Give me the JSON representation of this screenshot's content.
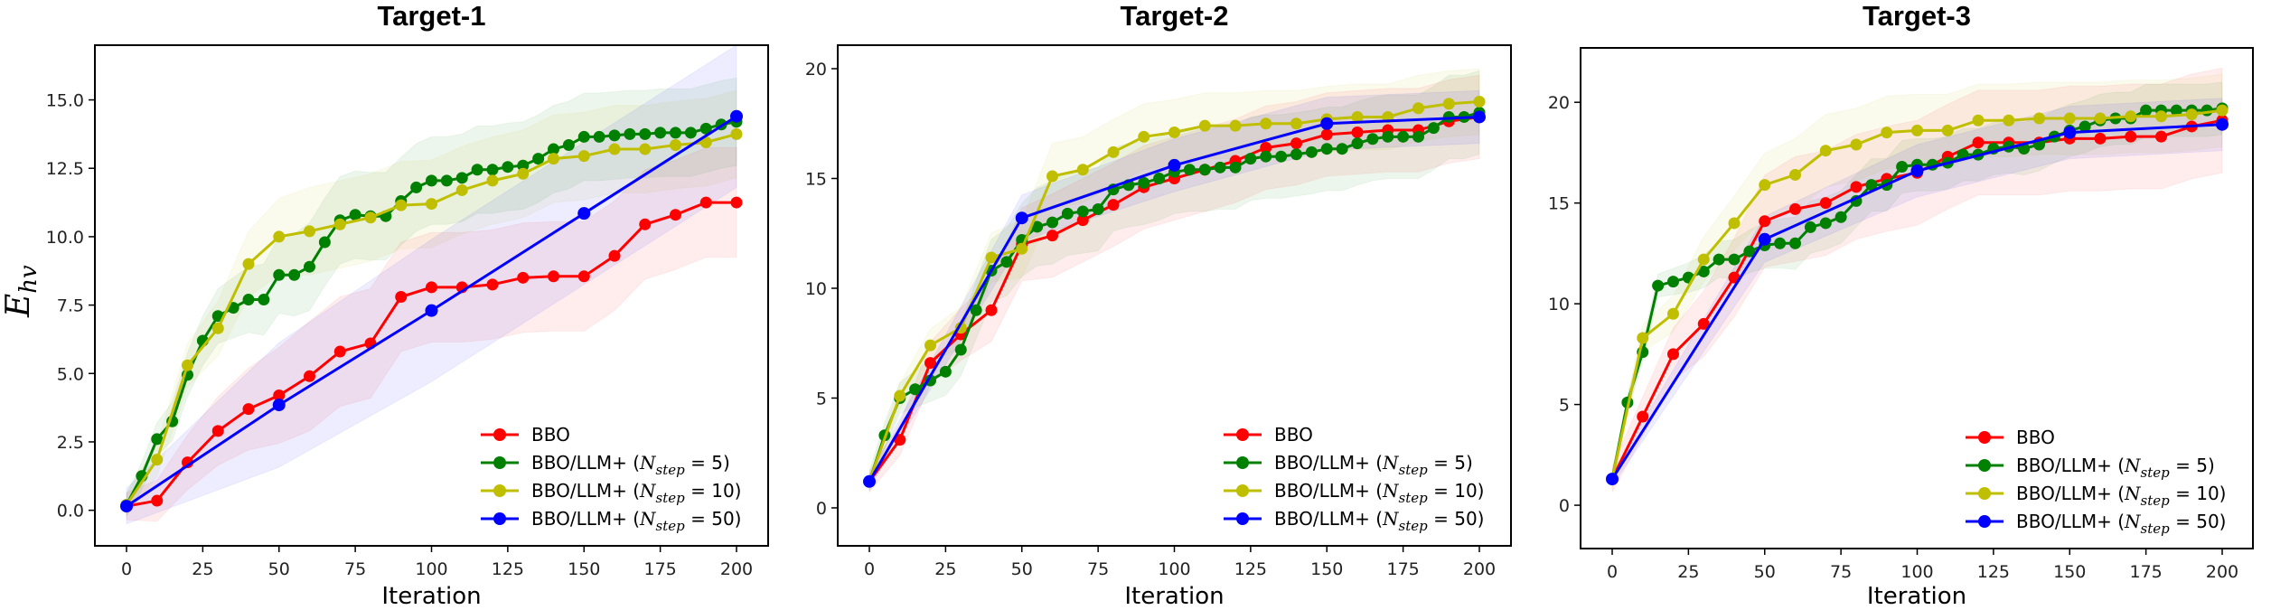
{
  "chart_data": [
    {
      "type": "line",
      "title": "Target-1",
      "xlabel": "Iteration",
      "ylabel": "E_hv",
      "ylabel_main": "E",
      "ylabel_sub": "hv",
      "xlim": [
        -10,
        211
      ],
      "ylim": [
        -1.3,
        17.0
      ],
      "xticks": [
        0,
        25,
        50,
        75,
        100,
        125,
        150,
        175,
        200
      ],
      "yticks": [
        0.0,
        2.5,
        5.0,
        7.5,
        10.0,
        12.5,
        15.0
      ],
      "ytick_labels": [
        "0.0",
        "2.5",
        "5.0",
        "7.5",
        "10.0",
        "12.5",
        "15.0"
      ],
      "legend_position": "lower-right",
      "series": [
        {
          "name": "BBO",
          "color": "#ff0000",
          "std": 2.0,
          "x": [
            0,
            10,
            20,
            30,
            40,
            50,
            60,
            70,
            80,
            90,
            100,
            110,
            120,
            130,
            140,
            150,
            160,
            170,
            180,
            190,
            200
          ],
          "y": [
            0.15,
            0.35,
            1.75,
            2.9,
            3.7,
            4.2,
            4.9,
            5.8,
            6.1,
            7.8,
            8.15,
            8.15,
            8.25,
            8.5,
            8.55,
            8.55,
            9.3,
            10.45,
            10.8,
            11.25,
            11.25
          ]
        },
        {
          "name": "BBO/LLM+ (N_step = 5)",
          "color": "#008000",
          "std": 1.6,
          "x": [
            0,
            5,
            10,
            15,
            20,
            25,
            30,
            35,
            40,
            45,
            50,
            55,
            60,
            65,
            70,
            75,
            80,
            85,
            90,
            95,
            100,
            105,
            110,
            115,
            120,
            125,
            130,
            135,
            140,
            145,
            150,
            155,
            160,
            165,
            170,
            175,
            180,
            185,
            190,
            195,
            200
          ],
          "y": [
            0.2,
            1.25,
            2.6,
            3.25,
            4.95,
            6.2,
            7.1,
            7.4,
            7.7,
            7.7,
            8.6,
            8.6,
            8.9,
            9.8,
            10.6,
            10.8,
            10.75,
            10.75,
            11.3,
            11.8,
            12.05,
            12.05,
            12.15,
            12.45,
            12.45,
            12.55,
            12.6,
            12.85,
            13.2,
            13.35,
            13.65,
            13.65,
            13.7,
            13.75,
            13.75,
            13.8,
            13.8,
            13.8,
            13.95,
            14.1,
            14.2
          ]
        },
        {
          "name": "BBO/LLM+ (N_step = 10)",
          "color": "#bfbf00",
          "std": 1.6,
          "x": [
            0,
            10,
            20,
            30,
            40,
            50,
            60,
            70,
            80,
            90,
            100,
            110,
            120,
            130,
            140,
            150,
            160,
            170,
            180,
            190,
            200
          ],
          "y": [
            0.2,
            1.85,
            5.3,
            6.65,
            9.0,
            10.0,
            10.2,
            10.45,
            10.7,
            11.15,
            11.2,
            11.7,
            12.05,
            12.3,
            12.85,
            12.95,
            13.2,
            13.2,
            13.35,
            13.45,
            13.75
          ]
        },
        {
          "name": "BBO/LLM+ (N_step = 50)",
          "color": "#0000ff",
          "std": 2.6,
          "x": [
            0,
            50,
            100,
            150,
            200
          ],
          "y": [
            0.15,
            3.85,
            7.3,
            10.85,
            14.4
          ]
        }
      ]
    },
    {
      "type": "line",
      "title": "Target-2",
      "xlabel": "Iteration",
      "ylabel": "",
      "xlim": [
        -10,
        211
      ],
      "ylim": [
        -1.73,
        21.07
      ],
      "xticks": [
        0,
        25,
        50,
        75,
        100,
        125,
        150,
        175,
        200
      ],
      "yticks": [
        0,
        5,
        10,
        15,
        20
      ],
      "ytick_labels": [
        "0",
        "5",
        "10",
        "15",
        "20"
      ],
      "legend_position": "lower-right",
      "series": [
        {
          "name": "BBO",
          "color": "#ff0000",
          "std": 1.9,
          "x": [
            0,
            10,
            20,
            30,
            40,
            50,
            60,
            70,
            80,
            90,
            100,
            110,
            120,
            130,
            140,
            150,
            160,
            170,
            180,
            190,
            200
          ],
          "y": [
            1.2,
            3.1,
            6.6,
            7.9,
            9.0,
            12.0,
            12.4,
            13.1,
            13.8,
            14.6,
            15.0,
            15.4,
            15.8,
            16.4,
            16.6,
            17.0,
            17.1,
            17.2,
            17.2,
            17.6,
            17.8
          ]
        },
        {
          "name": "BBO/LLM+ (N_step = 5)",
          "color": "#008000",
          "std": 1.9,
          "x": [
            0,
            5,
            10,
            15,
            20,
            25,
            30,
            35,
            40,
            45,
            50,
            55,
            60,
            65,
            70,
            75,
            80,
            85,
            90,
            95,
            100,
            105,
            110,
            115,
            120,
            125,
            130,
            135,
            140,
            145,
            150,
            155,
            160,
            165,
            170,
            175,
            180,
            185,
            190,
            195,
            200
          ],
          "y": [
            1.2,
            3.3,
            5.0,
            5.4,
            5.8,
            6.2,
            7.2,
            9.0,
            10.8,
            11.2,
            12.2,
            12.8,
            13.0,
            13.4,
            13.5,
            13.6,
            14.5,
            14.7,
            14.8,
            15.0,
            15.3,
            15.4,
            15.4,
            15.5,
            15.5,
            15.9,
            16.0,
            16.0,
            16.1,
            16.2,
            16.35,
            16.35,
            16.6,
            16.8,
            16.9,
            16.9,
            16.9,
            17.3,
            17.8,
            17.8,
            18.0
          ]
        },
        {
          "name": "BBO/LLM+ (N_step = 10)",
          "color": "#bfbf00",
          "std": 1.5,
          "x": [
            0,
            10,
            20,
            30,
            40,
            50,
            60,
            70,
            80,
            90,
            100,
            110,
            120,
            130,
            140,
            150,
            160,
            170,
            180,
            190,
            200
          ],
          "y": [
            1.2,
            5.1,
            7.4,
            8.2,
            11.4,
            11.8,
            15.1,
            15.4,
            16.2,
            16.9,
            17.1,
            17.4,
            17.4,
            17.5,
            17.5,
            17.7,
            17.8,
            17.8,
            18.2,
            18.4,
            18.5
          ]
        },
        {
          "name": "BBO/LLM+ (N_step = 50)",
          "color": "#0000ff",
          "std": 1.2,
          "x": [
            0,
            50,
            100,
            150,
            200
          ],
          "y": [
            1.2,
            13.2,
            15.6,
            17.5,
            17.8
          ]
        }
      ]
    },
    {
      "type": "line",
      "title": "Target-3",
      "xlabel": "Iteration",
      "ylabel": "",
      "xlim": [
        -10,
        211
      ],
      "ylim": [
        -2.15,
        22.7
      ],
      "xticks": [
        0,
        25,
        50,
        75,
        100,
        125,
        150,
        175,
        200
      ],
      "yticks": [
        0,
        5,
        10,
        15,
        20
      ],
      "ytick_labels": [
        "0",
        "5",
        "10",
        "15",
        "20"
      ],
      "legend_position": "lower-right",
      "series": [
        {
          "name": "BBO",
          "color": "#ff0000",
          "std": 2.6,
          "x": [
            0,
            10,
            20,
            30,
            40,
            50,
            60,
            70,
            80,
            90,
            100,
            110,
            120,
            130,
            140,
            150,
            160,
            170,
            180,
            190,
            200
          ],
          "y": [
            1.3,
            4.4,
            7.5,
            9.0,
            11.3,
            14.1,
            14.7,
            15.0,
            15.8,
            16.2,
            16.5,
            17.3,
            18.0,
            18.0,
            18.0,
            18.2,
            18.2,
            18.3,
            18.3,
            18.8,
            19.1
          ]
        },
        {
          "name": "BBO/LLM+ (N_step = 5)",
          "color": "#008000",
          "std": 1.3,
          "x": [
            0,
            5,
            10,
            15,
            20,
            25,
            30,
            35,
            40,
            45,
            50,
            55,
            60,
            65,
            70,
            75,
            80,
            85,
            90,
            95,
            100,
            105,
            110,
            115,
            120,
            125,
            130,
            135,
            140,
            145,
            150,
            155,
            160,
            165,
            170,
            175,
            180,
            185,
            190,
            195,
            200
          ],
          "y": [
            1.3,
            5.1,
            7.6,
            10.9,
            11.1,
            11.3,
            11.6,
            12.2,
            12.2,
            12.6,
            12.9,
            13.0,
            13.0,
            13.8,
            14.0,
            14.3,
            15.1,
            15.9,
            15.9,
            16.8,
            16.9,
            16.9,
            17.0,
            17.4,
            17.4,
            17.7,
            17.8,
            17.7,
            17.9,
            18.3,
            18.6,
            18.8,
            19.1,
            19.2,
            19.2,
            19.6,
            19.6,
            19.6,
            19.6,
            19.6,
            19.7
          ]
        },
        {
          "name": "BBO/LLM+ (N_step = 10)",
          "color": "#bfbf00",
          "std": 1.8,
          "x": [
            0,
            10,
            20,
            30,
            40,
            50,
            60,
            70,
            80,
            90,
            100,
            110,
            120,
            130,
            140,
            150,
            160,
            170,
            180,
            190,
            200
          ],
          "y": [
            1.3,
            8.3,
            9.5,
            12.2,
            14.0,
            15.9,
            16.4,
            17.6,
            17.9,
            18.5,
            18.6,
            18.6,
            19.1,
            19.1,
            19.2,
            19.2,
            19.2,
            19.3,
            19.3,
            19.4,
            19.6
          ]
        },
        {
          "name": "BBO/LLM+ (N_step = 50)",
          "color": "#0000ff",
          "std": 1.3,
          "x": [
            0,
            50,
            100,
            150,
            200
          ],
          "y": [
            1.3,
            13.2,
            16.6,
            18.5,
            18.9
          ]
        }
      ]
    }
  ],
  "legend": {
    "entries": [
      {
        "prefix": "BBO",
        "sym": "",
        "sub": "",
        "value": ""
      },
      {
        "prefix": "BBO/LLM+ (",
        "sym": "N",
        "sub": "step",
        "value": " = 5)"
      },
      {
        "prefix": "BBO/LLM+ (",
        "sym": "N",
        "sub": "step",
        "value": " = 10)"
      },
      {
        "prefix": "BBO/LLM+ (",
        "sym": "N",
        "sub": "step",
        "value": " = 50)"
      }
    ]
  }
}
